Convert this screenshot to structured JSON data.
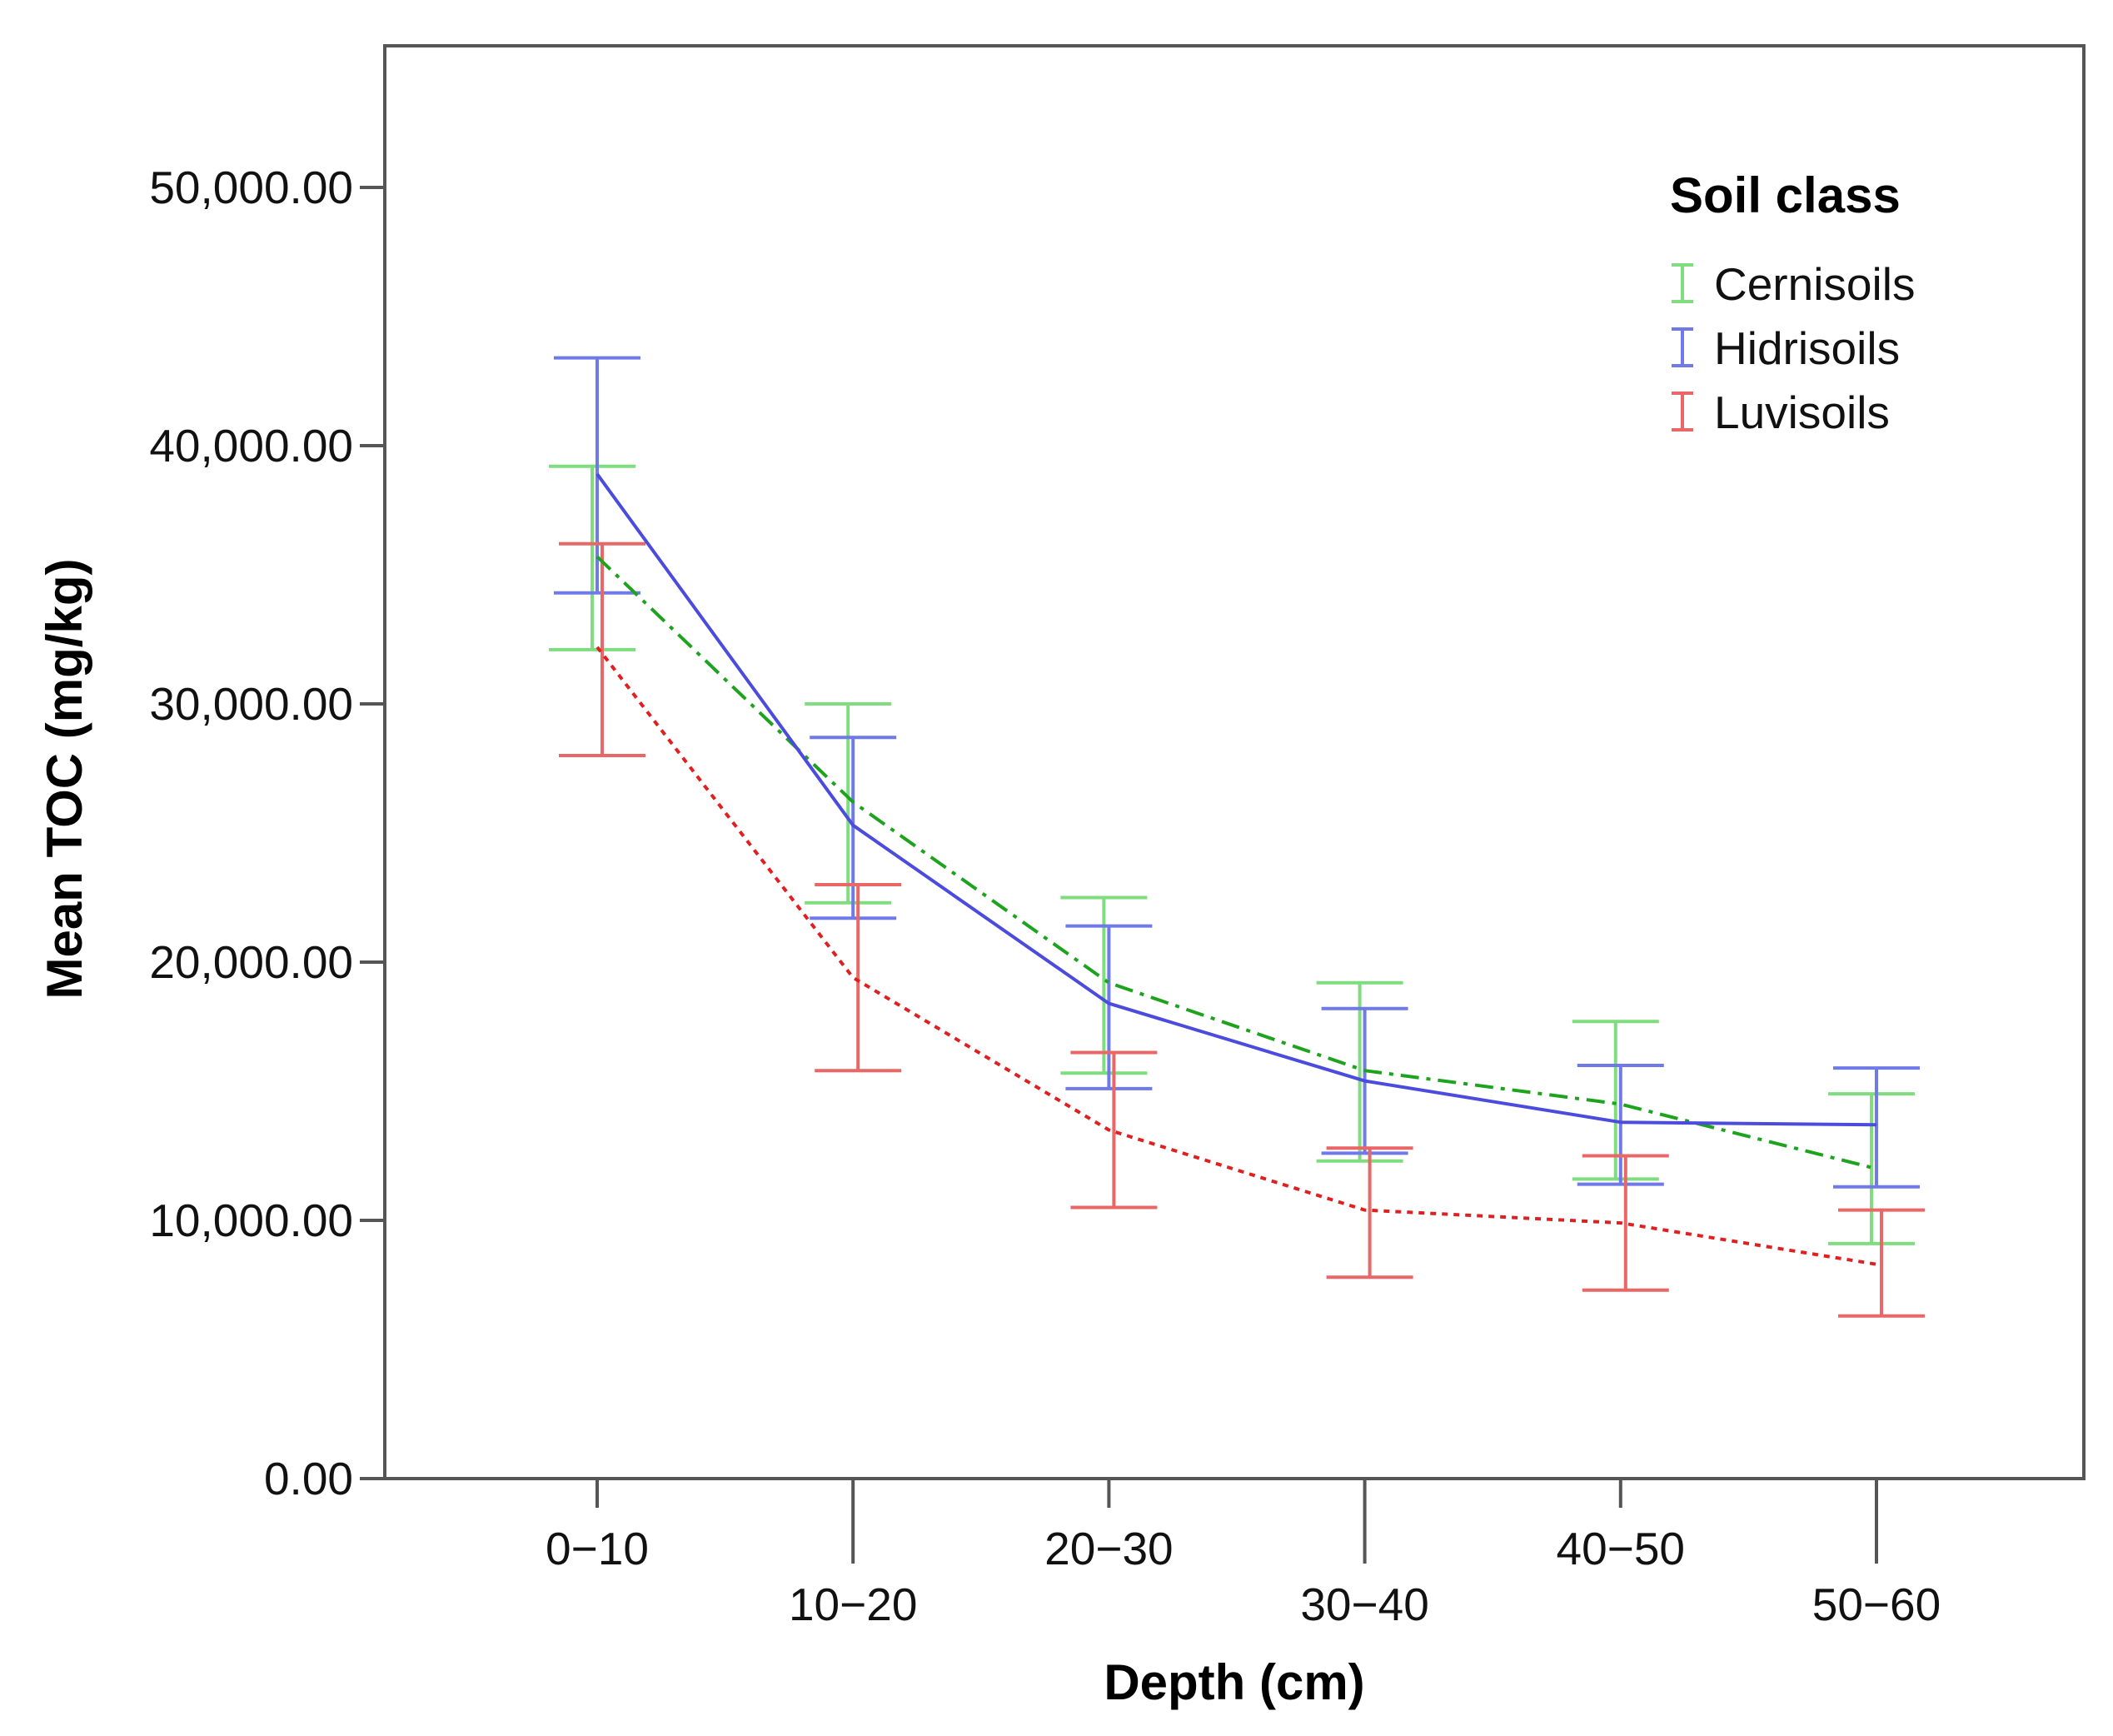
{
  "chart_data": {
    "type": "line",
    "title": "",
    "xlabel": "Depth (cm)",
    "ylabel": "Mean TOC (mg/kg)",
    "ylim": [
      0,
      55000
    ],
    "yticks": [
      0,
      10000,
      20000,
      30000,
      40000,
      50000
    ],
    "ytick_labels": [
      "0.00",
      "10,000.00",
      "20,000.00",
      "30,000.00",
      "40,000.00",
      "50,000.00"
    ],
    "categories": [
      "0−10",
      "10−20",
      "20−30",
      "30−40",
      "40−50",
      "50−60"
    ],
    "legend_title": "Soil class",
    "legend_position": "top-right",
    "series": [
      {
        "name": "Cernisoils",
        "color": "#1ea31e",
        "bar_color": "#7fdd7f",
        "line_style": "dash-dot",
        "values": [
          35700,
          26200,
          19200,
          15800,
          14500,
          12000
        ],
        "lower": [
          32100,
          22300,
          15700,
          12300,
          11600,
          9100
        ],
        "upper": [
          39200,
          30000,
          22500,
          19200,
          17700,
          14900
        ]
      },
      {
        "name": "Hidrisoils",
        "color": "#4b4bdd",
        "bar_color": "#6f7ae8",
        "line_style": "solid",
        "values": [
          38900,
          25300,
          18400,
          15400,
          13800,
          13700
        ],
        "lower": [
          34300,
          21700,
          15100,
          12600,
          11400,
          11300
        ],
        "upper": [
          43400,
          28700,
          21400,
          18200,
          16000,
          15900
        ]
      },
      {
        "name": "Luvisoils",
        "color": "#e02020",
        "bar_color": "#e96767",
        "line_style": "dotted",
        "values": [
          32200,
          19400,
          13500,
          10400,
          9900,
          8300
        ],
        "lower": [
          28000,
          15800,
          10500,
          7800,
          7300,
          6300
        ],
        "upper": [
          36200,
          23000,
          16500,
          12800,
          12500,
          10400
        ]
      }
    ]
  }
}
